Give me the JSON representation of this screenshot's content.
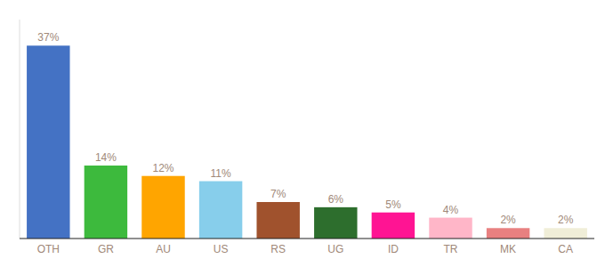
{
  "chart_data": {
    "type": "bar",
    "categories": [
      "OTH",
      "GR",
      "AU",
      "US",
      "RS",
      "UG",
      "ID",
      "TR",
      "MK",
      "CA"
    ],
    "values": [
      37,
      14,
      12,
      11,
      7,
      6,
      5,
      4,
      2,
      2
    ],
    "value_labels": [
      "37%",
      "14%",
      "12%",
      "11%",
      "7%",
      "6%",
      "5%",
      "4%",
      "2%",
      "2%"
    ],
    "colors": [
      "#4472c4",
      "#3dba3d",
      "#ffa500",
      "#87ceeb",
      "#a0522d",
      "#2d6e2d",
      "#ff1493",
      "#ffb6c8",
      "#e88080",
      "#f0eed8"
    ],
    "ylim": [
      0,
      42
    ],
    "data_labels": true,
    "tick_labels": "x",
    "grid": false
  }
}
